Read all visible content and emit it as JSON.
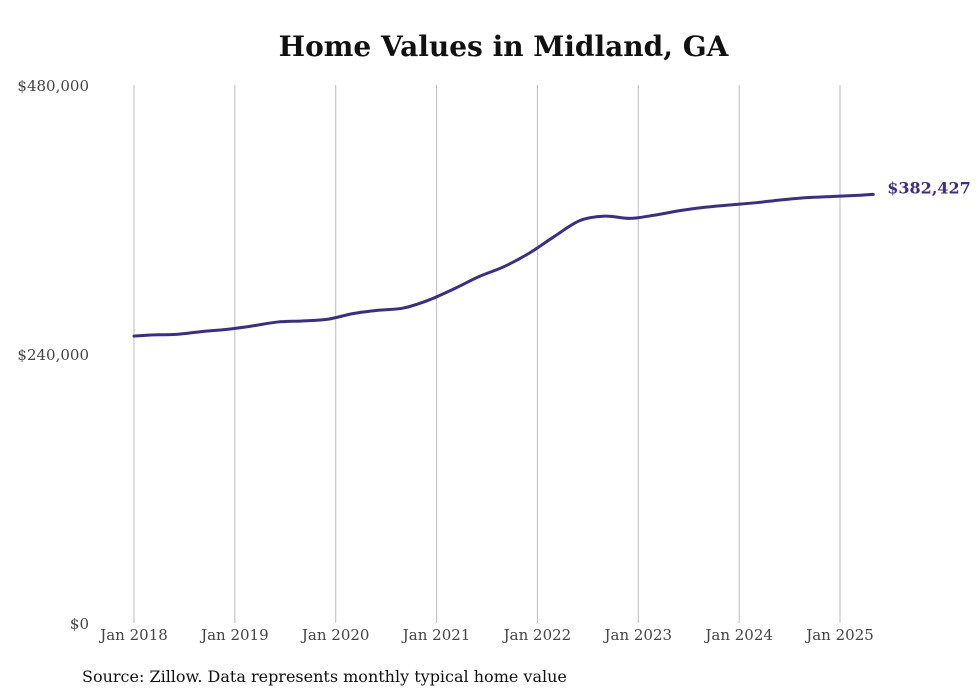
{
  "chart_data": {
    "type": "line",
    "title": "Home Values in Midland, GA",
    "source_note": "Source: Zillow. Data represents monthly typical home value",
    "ylim": [
      0,
      480000
    ],
    "y_ticks": [
      {
        "value": 0,
        "label": "$0"
      },
      {
        "value": 240000,
        "label": "$240,000"
      },
      {
        "value": 480000,
        "label": "$480,000"
      }
    ],
    "x_ticks": [
      {
        "value": 2018.0,
        "label": "Jan 2018"
      },
      {
        "value": 2019.0,
        "label": "Jan 2019"
      },
      {
        "value": 2020.0,
        "label": "Jan 2020"
      },
      {
        "value": 2021.0,
        "label": "Jan 2021"
      },
      {
        "value": 2022.0,
        "label": "Jan 2022"
      },
      {
        "value": 2023.0,
        "label": "Jan 2023"
      },
      {
        "value": 2024.0,
        "label": "Jan 2024"
      },
      {
        "value": 2025.0,
        "label": "Jan 2025"
      }
    ],
    "xlim": [
      2018.0,
      2025.33
    ],
    "grid": "vertical",
    "series": [
      {
        "color": "#3b2e8a",
        "end_label": "$382,427",
        "points": [
          {
            "x": 2018.0,
            "y": 256000
          },
          {
            "x": 2018.17,
            "y": 257000
          },
          {
            "x": 2018.42,
            "y": 257500
          },
          {
            "x": 2018.67,
            "y": 260000
          },
          {
            "x": 2018.92,
            "y": 262000
          },
          {
            "x": 2019.17,
            "y": 265000
          },
          {
            "x": 2019.42,
            "y": 268500
          },
          {
            "x": 2019.67,
            "y": 269500
          },
          {
            "x": 2019.92,
            "y": 271000
          },
          {
            "x": 2020.17,
            "y": 276000
          },
          {
            "x": 2020.42,
            "y": 279000
          },
          {
            "x": 2020.67,
            "y": 281000
          },
          {
            "x": 2020.92,
            "y": 288000
          },
          {
            "x": 2021.17,
            "y": 298000
          },
          {
            "x": 2021.42,
            "y": 309000
          },
          {
            "x": 2021.67,
            "y": 318000
          },
          {
            "x": 2021.92,
            "y": 330000
          },
          {
            "x": 2022.17,
            "y": 345000
          },
          {
            "x": 2022.42,
            "y": 359000
          },
          {
            "x": 2022.67,
            "y": 363000
          },
          {
            "x": 2022.92,
            "y": 361000
          },
          {
            "x": 2023.17,
            "y": 364000
          },
          {
            "x": 2023.42,
            "y": 368000
          },
          {
            "x": 2023.67,
            "y": 371000
          },
          {
            "x": 2023.92,
            "y": 373000
          },
          {
            "x": 2024.17,
            "y": 375000
          },
          {
            "x": 2024.42,
            "y": 377500
          },
          {
            "x": 2024.67,
            "y": 379500
          },
          {
            "x": 2024.92,
            "y": 380500
          },
          {
            "x": 2025.17,
            "y": 381500
          },
          {
            "x": 2025.33,
            "y": 382427
          }
        ]
      }
    ]
  }
}
